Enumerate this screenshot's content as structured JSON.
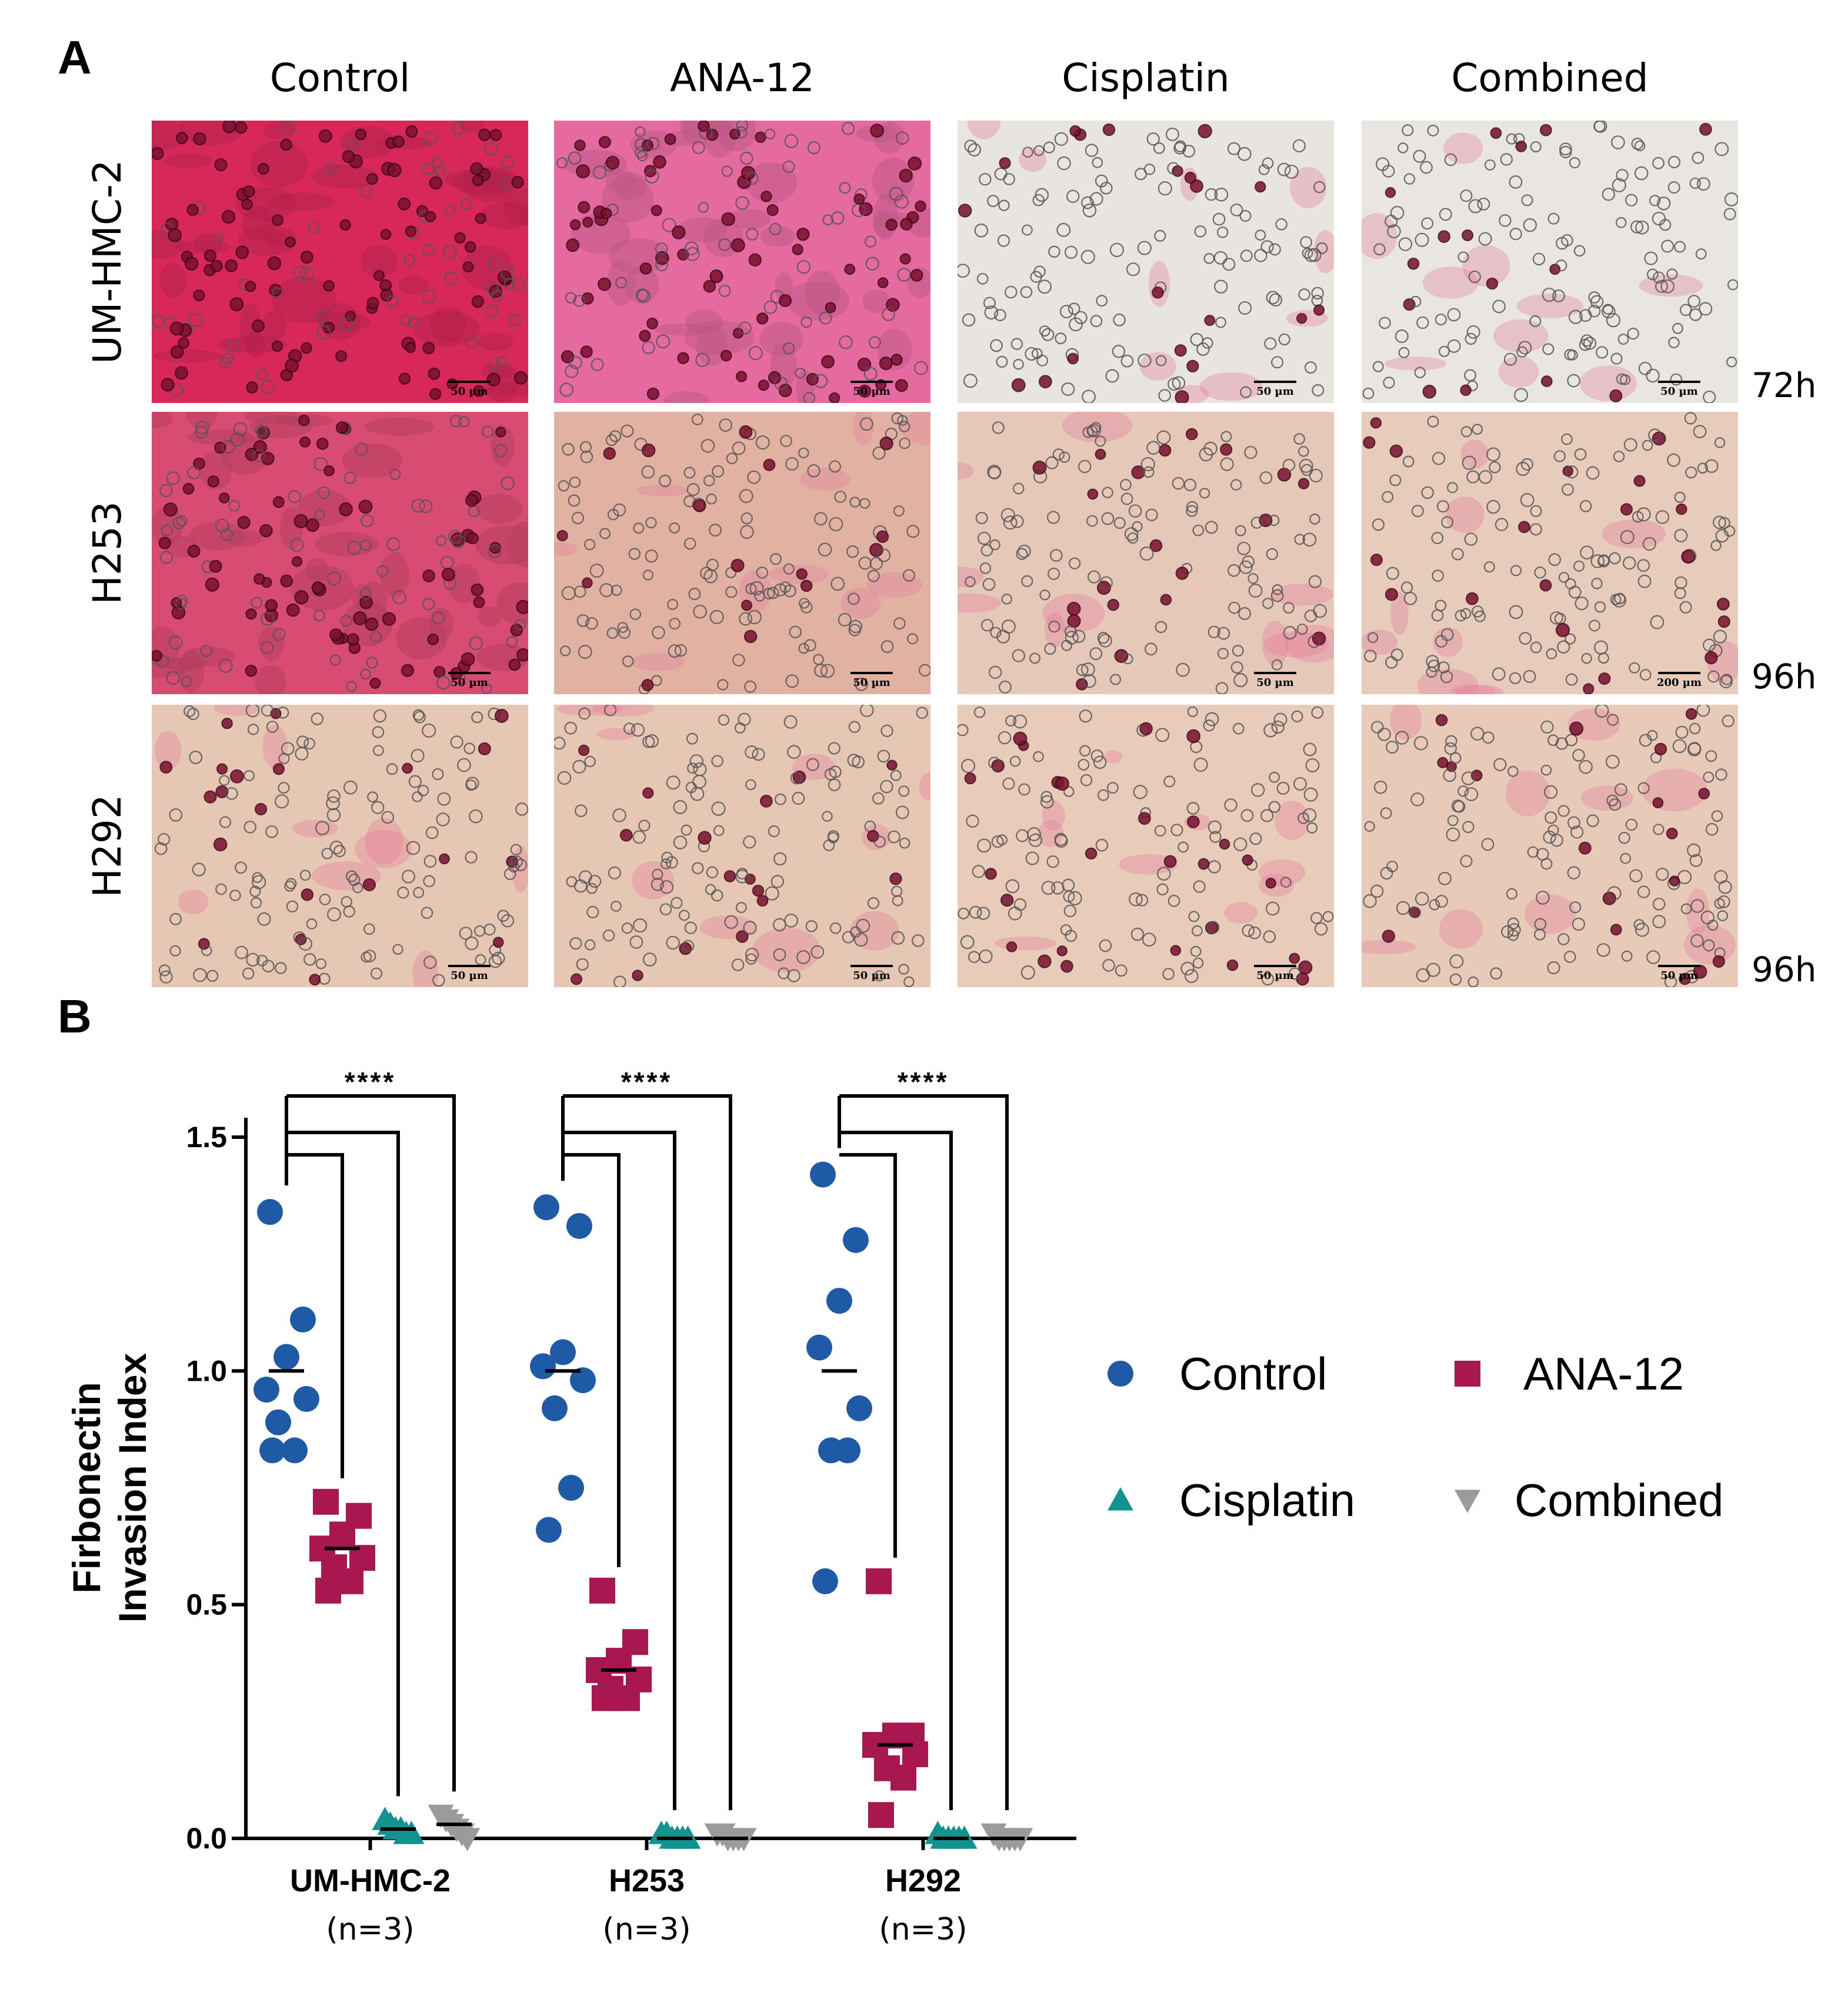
{
  "panel_a": {
    "letter": "A",
    "columns": [
      "Control",
      "ANA-12",
      "Cisplatin",
      "Combined"
    ],
    "rows": [
      {
        "label": "UM-HMC-2",
        "time": "72h"
      },
      {
        "label": "H253",
        "time": "96h"
      },
      {
        "label": "H292",
        "time": "96h"
      }
    ],
    "scale_bars": [
      [
        "50 µm",
        "50 µm",
        "50 µm",
        "50 µm"
      ],
      [
        "50 µm",
        "50 µm",
        "50 µm",
        "200 µm"
      ],
      [
        "50 µm",
        "50 µm",
        "50 µm",
        "50 µm"
      ]
    ],
    "image_tints": [
      [
        "#d8285a",
        "#e46aa0",
        "#e8e4df",
        "#e9e6e2"
      ],
      [
        "#d84b72",
        "#e1b2a2",
        "#e6c8b8",
        "#e7cbbb"
      ],
      [
        "#e6c7b3",
        "#e6c7b3",
        "#e8cbb9",
        "#e8cab8"
      ]
    ]
  },
  "panel_b": {
    "letter": "B"
  },
  "chart_data": {
    "type": "scatter",
    "ylabel": "Firbonectin\nInvasion Index",
    "ylim": [
      0,
      1.5
    ],
    "yticks": [
      "0.0",
      "0.5",
      "1.0",
      "1.5"
    ],
    "categories": [
      "UM-HMC-2",
      "H253",
      "H292"
    ],
    "category_notes": [
      "(n=3)",
      "(n=3)",
      "(n=3)"
    ],
    "series": [
      {
        "name": "Control",
        "color": "#1f5aa6",
        "marker": "circle",
        "values": [
          [
            1.34,
            1.11,
            1.03,
            0.96,
            0.94,
            0.89,
            0.83,
            0.83
          ],
          [
            1.35,
            1.31,
            1.04,
            1.01,
            0.98,
            0.92,
            0.75,
            0.66
          ],
          [
            1.42,
            1.28,
            1.15,
            1.05,
            0.92,
            0.83,
            0.83,
            0.55
          ]
        ],
        "means": [
          1.0,
          1.0,
          1.0
        ]
      },
      {
        "name": "ANA-12",
        "color": "#a8174f",
        "marker": "square",
        "values": [
          [
            0.72,
            0.69,
            0.65,
            0.62,
            0.6,
            0.58,
            0.55,
            0.53
          ],
          [
            0.53,
            0.42,
            0.38,
            0.36,
            0.34,
            0.32,
            0.3,
            0.3
          ],
          [
            0.55,
            0.22,
            0.22,
            0.2,
            0.18,
            0.15,
            0.13,
            0.05
          ]
        ],
        "means": [
          0.62,
          0.36,
          0.2
        ]
      },
      {
        "name": "Cisplatin",
        "color": "#12938f",
        "marker": "triangle-up",
        "values": [
          [
            0.04,
            0.03,
            0.02,
            0.02,
            0.01,
            0.01
          ],
          [
            0.01,
            0.01,
            0.0,
            0.0,
            0.0,
            0.0
          ],
          [
            0.01,
            0.0,
            0.0,
            0.0,
            0.0,
            0.0
          ]
        ],
        "means": [
          0.02,
          0.0,
          0.0
        ]
      },
      {
        "name": "Combined",
        "color": "#9b9b9b",
        "marker": "triangle-down",
        "values": [
          [
            0.05,
            0.04,
            0.03,
            0.02,
            0.01,
            0.0
          ],
          [
            0.01,
            0.01,
            0.0,
            0.0,
            0.0,
            0.0
          ],
          [
            0.01,
            0.0,
            0.0,
            0.0,
            0.0,
            0.0
          ]
        ],
        "means": [
          0.03,
          0.0,
          0.0
        ]
      }
    ],
    "significance": [
      "****",
      "****",
      "****"
    ],
    "baseline": 0.0,
    "legend_position": "right"
  }
}
